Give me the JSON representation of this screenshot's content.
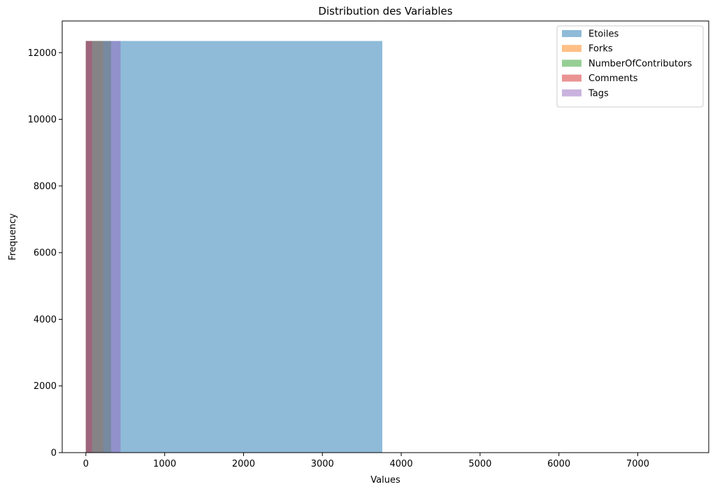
{
  "chart_data": {
    "type": "bar",
    "subtype": "histogram",
    "title": "Distribution des Variables",
    "xlabel": "Values",
    "ylabel": "Frequency",
    "xlim": [
      -300,
      7900
    ],
    "ylim": [
      0,
      12950
    ],
    "xticks": [
      0,
      1000,
      2000,
      3000,
      4000,
      5000,
      6000,
      7000
    ],
    "yticks": [
      0,
      2000,
      4000,
      6000,
      8000,
      10000,
      12000
    ],
    "grid": false,
    "legend_position": "top-right",
    "alpha": 0.5,
    "series": [
      {
        "name": "Etoiles",
        "color": "#1f77b4",
        "bins": [
          {
            "x0": 0,
            "x1": 3760,
            "count": 12350
          }
        ]
      },
      {
        "name": "Forks",
        "color": "#ff7f0e",
        "bins": [
          {
            "x0": 0,
            "x1": 220,
            "count": 12350
          }
        ]
      },
      {
        "name": "NumberOfContributors",
        "color": "#2ca02c",
        "bins": [
          {
            "x0": 0,
            "x1": 320,
            "count": 12350
          }
        ]
      },
      {
        "name": "Comments",
        "color": "#d62728",
        "bins": [
          {
            "x0": 0,
            "x1": 80,
            "count": 12350
          }
        ]
      },
      {
        "name": "Tags",
        "color": "#9467bd",
        "bins": [
          {
            "x0": 0,
            "x1": 440,
            "count": 12350
          }
        ]
      }
    ]
  }
}
